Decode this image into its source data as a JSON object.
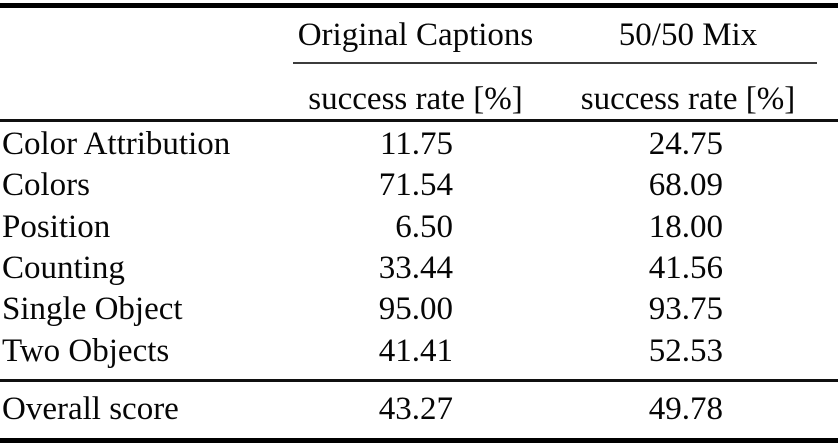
{
  "chart_data": {
    "type": "table",
    "column_groups": [
      {
        "label": "Original Captions",
        "subheader": "success rate [%]"
      },
      {
        "label": "50/50 Mix",
        "subheader": "success rate [%]"
      }
    ],
    "row_header_column": "",
    "rows": [
      {
        "label": "Color Attribution",
        "original_captions": "11.75",
        "mix_50_50": "24.75"
      },
      {
        "label": "Colors",
        "original_captions": "71.54",
        "mix_50_50": "68.09"
      },
      {
        "label": "Position",
        "original_captions": "6.50",
        "mix_50_50": "18.00"
      },
      {
        "label": "Counting",
        "original_captions": "33.44",
        "mix_50_50": "41.56"
      },
      {
        "label": "Single Object",
        "original_captions": "95.00",
        "mix_50_50": "93.75"
      },
      {
        "label": "Two Objects",
        "original_captions": "41.41",
        "mix_50_50": "52.53"
      }
    ],
    "footer_row": {
      "label": "Overall score",
      "original_captions": "43.27",
      "mix_50_50": "49.78"
    },
    "style": {
      "text_color": "#060606",
      "rule_color": "#000000",
      "background": "#ffffff"
    }
  }
}
